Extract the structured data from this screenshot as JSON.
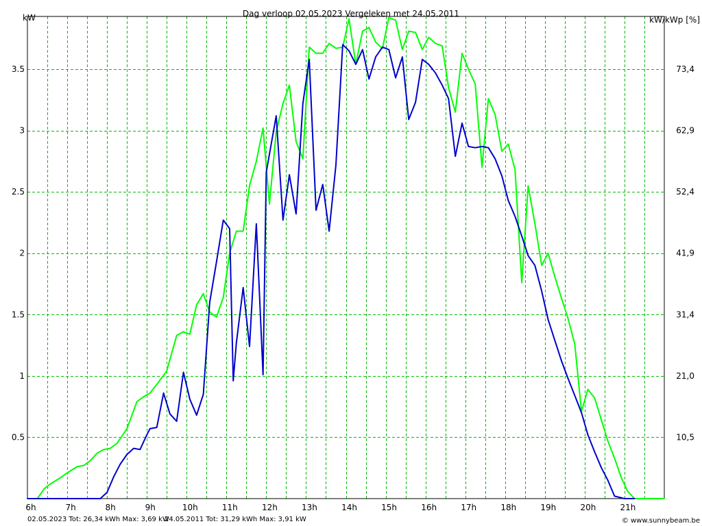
{
  "chart_data": {
    "type": "line",
    "title": "Dag  verloop 02.05.2023   Vergeleken met 24.05.2011",
    "ylabel_left": "kW",
    "ylabel_right": "kW/kWp [%]",
    "xlim": [
      6,
      22
    ],
    "ylim": [
      0,
      3.93
    ],
    "grid": true,
    "x_ticks": [
      {
        "x": 6,
        "label": "6h"
      },
      {
        "x": 7,
        "label": "7h"
      },
      {
        "x": 8,
        "label": "8h"
      },
      {
        "x": 9,
        "label": "9h"
      },
      {
        "x": 10,
        "label": "10h"
      },
      {
        "x": 11,
        "label": "11h"
      },
      {
        "x": 12,
        "label": "12h"
      },
      {
        "x": 13,
        "label": "13h"
      },
      {
        "x": 14,
        "label": "14h"
      },
      {
        "x": 15,
        "label": "15h"
      },
      {
        "x": 16,
        "label": "16h"
      },
      {
        "x": 17,
        "label": "17h"
      },
      {
        "x": 18,
        "label": "18h"
      },
      {
        "x": 19,
        "label": "19h"
      },
      {
        "x": 20,
        "label": "20h"
      },
      {
        "x": 21,
        "label": "21h"
      }
    ],
    "y_ticks_left": [
      {
        "y": 0.5,
        "label": "0.5"
      },
      {
        "y": 1.0,
        "label": "1"
      },
      {
        "y": 1.5,
        "label": "1.5"
      },
      {
        "y": 2.0,
        "label": "2"
      },
      {
        "y": 2.5,
        "label": "2.5"
      },
      {
        "y": 3.0,
        "label": "3"
      },
      {
        "y": 3.5,
        "label": "3.5"
      }
    ],
    "y_ticks_right": [
      {
        "y": 0.5,
        "label": "10,5"
      },
      {
        "y": 1.0,
        "label": "21,0"
      },
      {
        "y": 1.5,
        "label": "31,4"
      },
      {
        "y": 2.0,
        "label": "41,9"
      },
      {
        "y": 2.5,
        "label": "52,4"
      },
      {
        "y": 3.0,
        "label": "62,9"
      },
      {
        "y": 3.5,
        "label": "73,4"
      }
    ],
    "series": [
      {
        "name": "02.05.2023",
        "color": "#0000cc",
        "x": [
          6.0,
          7.0,
          7.83,
          8.0,
          8.17,
          8.33,
          8.5,
          8.67,
          8.83,
          9.0,
          9.08,
          9.25,
          9.42,
          9.58,
          9.75,
          9.92,
          10.08,
          10.25,
          10.42,
          10.58,
          10.75,
          10.92,
          11.08,
          11.17,
          11.25,
          11.42,
          11.58,
          11.75,
          11.92,
          12.0,
          12.25,
          12.42,
          12.58,
          12.75,
          12.92,
          13.08,
          13.25,
          13.42,
          13.58,
          13.75,
          13.92,
          14.08,
          14.25,
          14.42,
          14.58,
          14.75,
          14.92,
          15.08,
          15.25,
          15.42,
          15.58,
          15.75,
          15.92,
          16.08,
          16.25,
          16.42,
          16.58,
          16.75,
          16.92,
          17.08,
          17.25,
          17.42,
          17.58,
          17.75,
          17.92,
          18.08,
          18.25,
          18.42,
          18.58,
          18.75,
          18.92,
          19.08,
          19.25,
          19.42,
          19.58,
          19.75,
          19.92,
          20.08,
          20.25,
          20.42,
          20.58,
          20.75,
          21.0,
          21.25
        ],
        "y": [
          0,
          0,
          0,
          0.05,
          0.18,
          0.28,
          0.36,
          0.41,
          0.4,
          0.52,
          0.57,
          0.58,
          0.86,
          0.69,
          0.63,
          1.03,
          0.81,
          0.68,
          0.85,
          1.6,
          1.93,
          2.27,
          2.2,
          0.96,
          1.27,
          1.72,
          1.24,
          2.24,
          1.01,
          2.66,
          3.12,
          2.27,
          2.64,
          2.32,
          3.22,
          3.58,
          2.35,
          2.56,
          2.18,
          2.72,
          3.7,
          3.65,
          3.54,
          3.66,
          3.42,
          3.6,
          3.68,
          3.66,
          3.43,
          3.6,
          3.09,
          3.23,
          3.58,
          3.54,
          3.47,
          3.37,
          3.26,
          2.79,
          3.06,
          2.87,
          2.86,
          2.87,
          2.86,
          2.77,
          2.63,
          2.43,
          2.3,
          2.14,
          1.98,
          1.9,
          1.69,
          1.46,
          1.29,
          1.12,
          0.98,
          0.84,
          0.7,
          0.52,
          0.38,
          0.25,
          0.15,
          0.02,
          0,
          0
        ]
      },
      {
        "name": "24.05.2011",
        "color": "#00ff00",
        "x": [
          6.0,
          6.25,
          6.42,
          6.58,
          6.83,
          7.0,
          7.25,
          7.42,
          7.58,
          7.75,
          7.92,
          8.08,
          8.25,
          8.5,
          8.75,
          8.92,
          9.08,
          9.25,
          9.5,
          9.75,
          9.92,
          10.08,
          10.25,
          10.42,
          10.58,
          10.75,
          10.92,
          11.08,
          11.25,
          11.42,
          11.58,
          11.75,
          11.92,
          12.08,
          12.25,
          12.42,
          12.58,
          12.75,
          12.92,
          13.08,
          13.25,
          13.42,
          13.58,
          13.75,
          13.92,
          14.08,
          14.25,
          14.42,
          14.58,
          14.75,
          14.92,
          15.08,
          15.25,
          15.42,
          15.58,
          15.75,
          15.92,
          16.08,
          16.25,
          16.42,
          16.58,
          16.75,
          16.92,
          17.08,
          17.25,
          17.42,
          17.58,
          17.75,
          17.92,
          18.08,
          18.25,
          18.42,
          18.58,
          18.75,
          18.92,
          19.08,
          19.25,
          19.42,
          19.58,
          19.75,
          19.92,
          20.08,
          20.25,
          20.42,
          20.58,
          20.75,
          20.92,
          21.08,
          21.25,
          21.42,
          21.58,
          21.75,
          22.0
        ],
        "y": [
          0,
          0,
          0.08,
          0.12,
          0.17,
          0.21,
          0.26,
          0.27,
          0.31,
          0.37,
          0.4,
          0.41,
          0.45,
          0.57,
          0.79,
          0.83,
          0.86,
          0.93,
          1.04,
          1.33,
          1.36,
          1.34,
          1.58,
          1.67,
          1.52,
          1.48,
          1.64,
          2.0,
          2.18,
          2.18,
          2.55,
          2.75,
          3.02,
          2.4,
          2.99,
          3.22,
          3.37,
          2.91,
          2.77,
          3.68,
          3.63,
          3.63,
          3.71,
          3.67,
          3.68,
          3.91,
          3.54,
          3.81,
          3.84,
          3.72,
          3.67,
          3.92,
          3.9,
          3.66,
          3.81,
          3.8,
          3.66,
          3.76,
          3.71,
          3.69,
          3.35,
          3.15,
          3.63,
          3.5,
          3.38,
          2.7,
          3.26,
          3.13,
          2.83,
          2.89,
          2.68,
          1.76,
          2.55,
          2.24,
          1.9,
          2.0,
          1.81,
          1.63,
          1.47,
          1.26,
          0.71,
          0.89,
          0.82,
          0.64,
          0.47,
          0.33,
          0.17,
          0.06,
          0,
          0,
          0,
          0,
          0
        ]
      }
    ]
  },
  "footer": {
    "legend_blue": "02.05.2023 Tot: 26,34 kWh Max: 3,69 kW",
    "legend_green": "24.05.2011 Tot: 31,29 kWh Max: 3,91 kW",
    "credit": "© www.sunnybeam.be"
  },
  "colors": {
    "grid": "#00bb00",
    "axis": "#000000",
    "background": "#ffffff",
    "legend_blue": "#0000cc",
    "legend_green": "#00cc00"
  }
}
